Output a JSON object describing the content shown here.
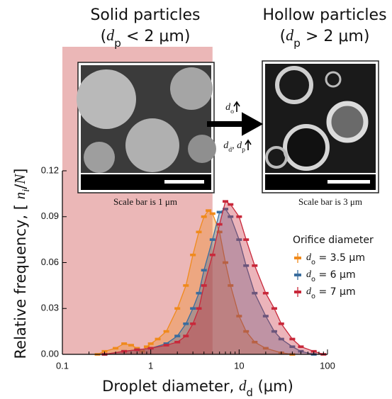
{
  "chart_data": {
    "type": "area-line",
    "titles": [
      {
        "title": "Solid particles",
        "subtitle": "(dp < 2 μm)"
      },
      {
        "title": "Hollow particles",
        "subtitle": "(dp > 2 μm)"
      }
    ],
    "insets": [
      {
        "caption": "Scale bar is 1 μm"
      },
      {
        "caption": "Scale bar is 3 μm"
      }
    ],
    "arrow_labels": [
      "do",
      "dd, dp"
    ],
    "x_label": "Droplet diameter, dd (μm)",
    "y_label": "Relative frequency, [ ni/N]",
    "log_x": true,
    "xlim": [
      0.1,
      100
    ],
    "xticks": [
      0.1,
      1,
      10,
      100
    ],
    "ylim": [
      0,
      0.12
    ],
    "yticks": [
      {
        "value": 0,
        "label": "0.00"
      },
      {
        "value": 0.03,
        "label": "0.03"
      },
      {
        "value": 0.06,
        "label": "0.06"
      },
      {
        "value": 0.09,
        "label": "0.09"
      },
      {
        "value": 0.12,
        "label": "0.12"
      }
    ],
    "highlight_xrange": [
      0.1,
      5
    ],
    "highlight_color": "#ebb7b7",
    "legend_title": "Orifice diameter",
    "legend_position": "right",
    "series": [
      {
        "name": "do = 3.5 μm",
        "color": "#f08a1c",
        "x": [
          0.25,
          0.3,
          0.4,
          0.5,
          0.6,
          0.7,
          0.8,
          0.9,
          1.0,
          1.2,
          1.5,
          2,
          2.5,
          3,
          3.5,
          4,
          4.5,
          5,
          6,
          7,
          8,
          10,
          12,
          15,
          20,
          30,
          40
        ],
        "values": [
          0,
          0.002,
          0.004,
          0.007,
          0.006,
          0.004,
          0.002,
          0.005,
          0.007,
          0.01,
          0.015,
          0.03,
          0.045,
          0.065,
          0.08,
          0.09,
          0.094,
          0.092,
          0.08,
          0.06,
          0.045,
          0.025,
          0.015,
          0.008,
          0.004,
          0.001,
          0
        ]
      },
      {
        "name": "do = 6 μm",
        "color": "#3a6d9e",
        "x": [
          0.3,
          0.5,
          0.7,
          1,
          1.5,
          2,
          2.5,
          3,
          3.5,
          4,
          5,
          6,
          7,
          8,
          10,
          12,
          15,
          20,
          25,
          30,
          40,
          50,
          70
        ],
        "values": [
          0,
          0.002,
          0.003,
          0.004,
          0.007,
          0.012,
          0.02,
          0.03,
          0.04,
          0.055,
          0.075,
          0.093,
          0.095,
          0.09,
          0.075,
          0.058,
          0.04,
          0.025,
          0.015,
          0.01,
          0.005,
          0.002,
          0
        ]
      },
      {
        "name": "do = 7 μm",
        "color": "#c8283a",
        "x": [
          0.3,
          0.5,
          0.7,
          1,
          1.5,
          2,
          2.5,
          3,
          3.5,
          4,
          5,
          6,
          7,
          8,
          10,
          12,
          15,
          20,
          25,
          30,
          40,
          50,
          70,
          90
        ],
        "values": [
          0,
          0.002,
          0.003,
          0.004,
          0.006,
          0.008,
          0.012,
          0.02,
          0.03,
          0.045,
          0.065,
          0.085,
          0.1,
          0.098,
          0.09,
          0.075,
          0.058,
          0.04,
          0.03,
          0.02,
          0.01,
          0.005,
          0.002,
          0
        ]
      }
    ]
  }
}
